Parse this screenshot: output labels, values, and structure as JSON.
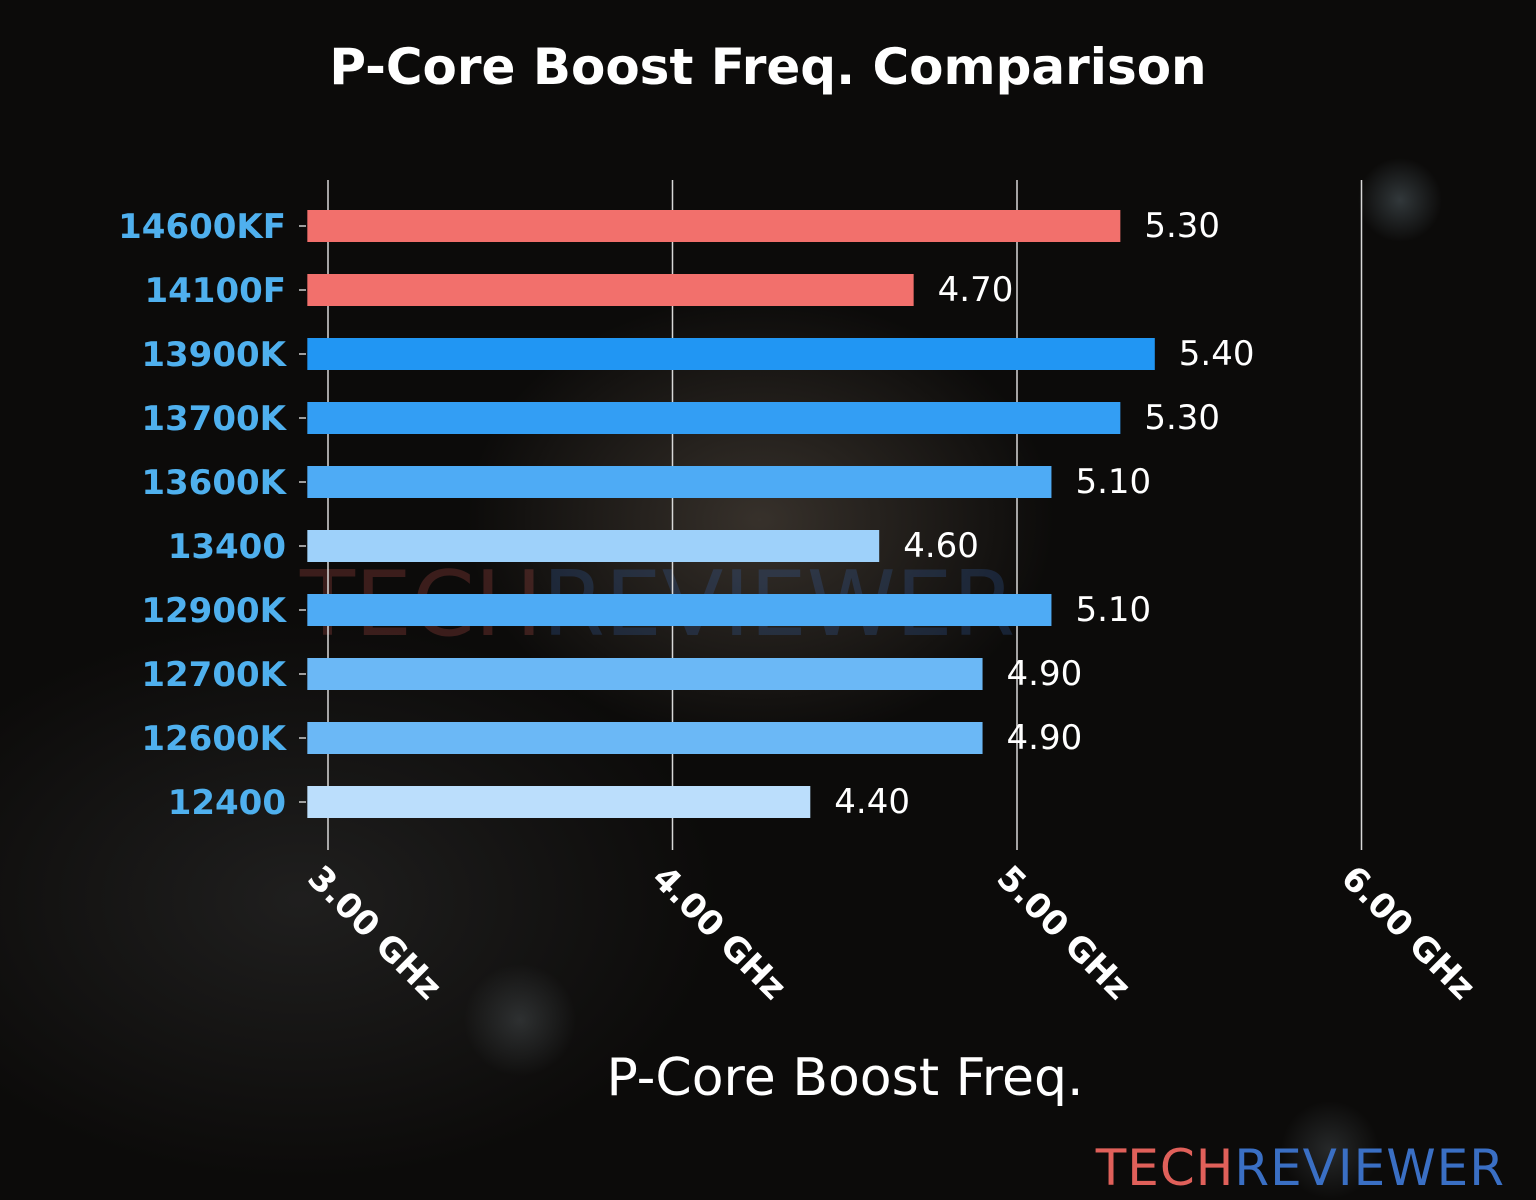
{
  "chart_data": {
    "type": "bar",
    "orientation": "horizontal",
    "title": "P-Core Boost Freq. Comparison",
    "xlabel": "P-Core Boost Freq.",
    "ylabel": "",
    "categories": [
      "14600KF",
      "14100F",
      "13900K",
      "13700K",
      "13600K",
      "13400",
      "12900K",
      "12700K",
      "12600K",
      "12400"
    ],
    "values": [
      5.3,
      4.7,
      5.4,
      5.3,
      5.1,
      4.6,
      5.1,
      4.9,
      4.9,
      4.4
    ],
    "value_labels": [
      "5.30",
      "4.70",
      "5.40",
      "5.30",
      "5.10",
      "4.60",
      "5.10",
      "4.90",
      "4.90",
      "4.40"
    ],
    "bar_colors": [
      "#f2706c",
      "#f2706c",
      "#2196f3",
      "#339ef4",
      "#4eabf5",
      "#9ed1fa",
      "#4eabf5",
      "#6bb8f6",
      "#6bb8f6",
      "#bbdefc"
    ],
    "xticks": [
      3,
      4,
      5,
      6
    ],
    "xtick_labels": [
      "3.00 GHz",
      "4.00 GHz",
      "5.00 GHz",
      "6.00 GHz"
    ],
    "xlim": [
      2.94,
      6.0
    ],
    "grid": "vertical",
    "label_color": "#4fb0ee"
  },
  "watermark": {
    "part1": "TECH",
    "part2": "REVIEWER",
    "color1": "#e0605a",
    "color2": "#3a6fc4"
  }
}
